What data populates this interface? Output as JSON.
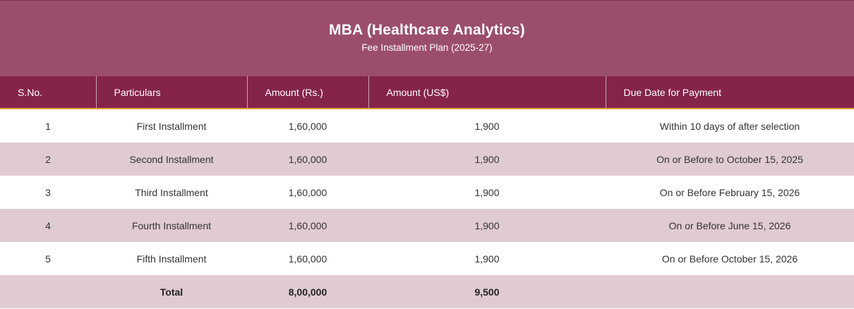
{
  "header": {
    "title": "MBA (Healthcare Analytics)",
    "subtitle": "Fee Installment Plan (2025-27)"
  },
  "table": {
    "columns": [
      "S.No.",
      "Particulars",
      "Amount (Rs.)",
      "Amount (US$)",
      "Due Date for Payment"
    ],
    "rows": [
      [
        "1",
        "First Installment",
        "1,60,000",
        "1,900",
        "Within 10 days of after selection"
      ],
      [
        "2",
        "Second Installment",
        "1,60,000",
        "1,900",
        "On or Before to October 15, 2025"
      ],
      [
        "3",
        "Third Installment",
        "1,60,000",
        "1,900",
        "On or Before February 15, 2026"
      ],
      [
        "4",
        "Fourth Installment",
        "1,60,000",
        "1,900",
        "On or Before June 15, 2026"
      ],
      [
        "5",
        "Fifth Installment",
        "1,60,000",
        "1,900",
        "On or Before October 15, 2026"
      ]
    ],
    "total": {
      "label": "Total",
      "amount_rs": "8,00,000",
      "amount_usd": "9,500"
    }
  }
}
